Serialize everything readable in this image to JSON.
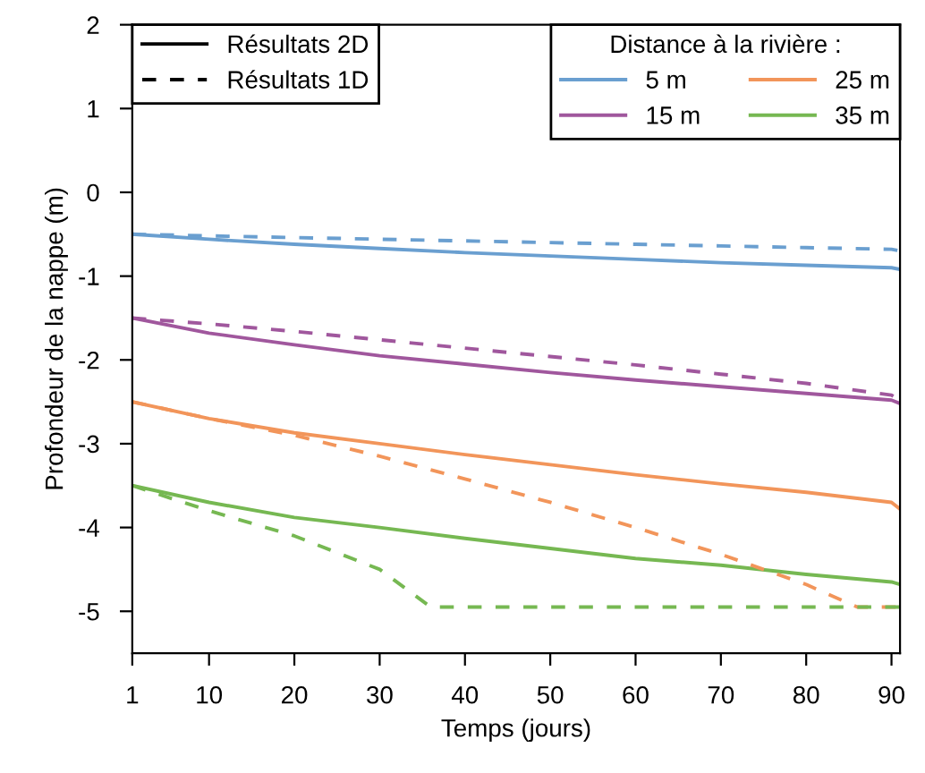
{
  "chart_data": {
    "type": "line",
    "xlabel": "Temps (jours)",
    "ylabel": "Profondeur de la nappe (m)",
    "legend_title": "Distance à la rivière :",
    "legend": "top right",
    "grid": false,
    "xlim": [
      1,
      91
    ],
    "xticks": [
      1,
      10,
      20,
      30,
      40,
      50,
      60,
      70,
      80,
      90
    ],
    "ylim": [
      -5.5,
      2
    ],
    "yticks": [
      -5,
      -4,
      -3,
      -2,
      -1,
      0,
      1,
      2
    ],
    "x": [
      1,
      10,
      20,
      30,
      40,
      50,
      60,
      70,
      80,
      90,
      91
    ],
    "series": [
      {
        "name": "Résultats 2D",
        "color": "#000000",
        "line_style": "solid",
        "values": [
          null,
          null,
          null,
          null,
          null,
          null,
          null,
          null,
          null,
          null,
          null
        ]
      },
      {
        "name": "Résultats 1D",
        "color": "#000000",
        "line_style": "dashed",
        "values": [
          null,
          null,
          null,
          null,
          null,
          null,
          null,
          null,
          null,
          null,
          null
        ]
      },
      {
        "name": "5 m",
        "color": "#6a9fd0",
        "line_style": "solid",
        "values": [
          -0.5,
          -0.56,
          -0.62,
          -0.67,
          -0.72,
          -0.76,
          -0.8,
          -0.84,
          -0.87,
          -0.9,
          -0.92
        ]
      },
      {
        "name": "15 m",
        "color": "#a0579d",
        "line_style": "solid",
        "values": [
          -1.5,
          -1.68,
          -1.82,
          -1.95,
          -2.05,
          -2.15,
          -2.24,
          -2.32,
          -2.4,
          -2.48,
          -2.52
        ]
      },
      {
        "name": "25 m",
        "color": "#f2955a",
        "line_style": "solid",
        "values": [
          -2.5,
          -2.7,
          -2.87,
          -3.0,
          -3.13,
          -3.25,
          -3.37,
          -3.48,
          -3.58,
          -3.7,
          -3.78
        ]
      },
      {
        "name": "35 m",
        "color": "#76b852",
        "line_style": "solid",
        "values": [
          -3.5,
          -3.7,
          -3.88,
          -4.0,
          -4.13,
          -4.25,
          -4.37,
          -4.45,
          -4.56,
          -4.65,
          -4.68
        ]
      },
      {
        "color": "#6a9fd0",
        "line_style": "dashed",
        "values": [
          -0.5,
          -0.52,
          -0.54,
          -0.56,
          -0.58,
          -0.6,
          -0.62,
          -0.64,
          -0.66,
          -0.68,
          -0.7
        ]
      },
      {
        "color": "#a0579d",
        "line_style": "dashed",
        "values": [
          -1.5,
          -1.57,
          -1.66,
          -1.76,
          -1.86,
          -1.96,
          -2.06,
          -2.17,
          -2.28,
          -2.42,
          -2.48
        ]
      },
      {
        "color": "#f2955a",
        "line_style": "dashed",
        "x": [
          1,
          10,
          20,
          30,
          40,
          50,
          60,
          70,
          80,
          86,
          91
        ],
        "values": [
          -2.5,
          -2.7,
          -2.9,
          -3.15,
          -3.42,
          -3.7,
          -4.0,
          -4.32,
          -4.68,
          -4.95,
          -4.95
        ]
      },
      {
        "color": "#76b852",
        "line_style": "dashed",
        "x": [
          1,
          10,
          20,
          30,
          36,
          91
        ],
        "values": [
          -3.5,
          -3.8,
          -4.1,
          -4.5,
          -4.95,
          -4.95
        ]
      }
    ]
  }
}
